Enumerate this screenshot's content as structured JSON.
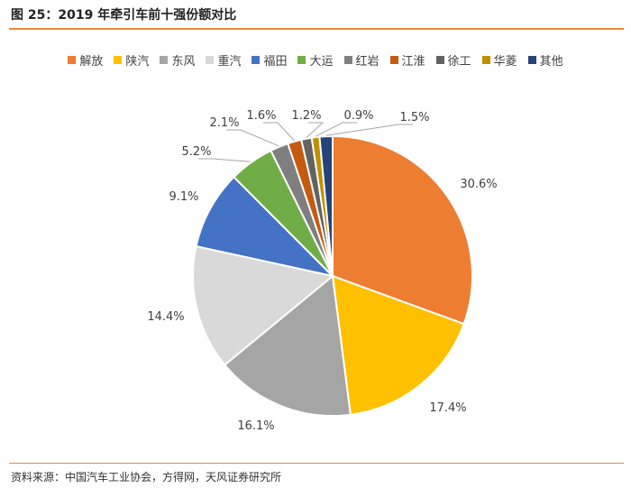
{
  "figure": {
    "title": "图 25：2019 年牵引车前十强份额对比",
    "source": "资料来源：中国汽车工业协会，方得网，天风证券研究所"
  },
  "chart_data": {
    "type": "pie",
    "title": "",
    "legend_position": "top",
    "start_angle": "12 o'clock",
    "direction": "clockwise",
    "categories": [
      "解放",
      "陕汽",
      "东风",
      "重汽",
      "福田",
      "大运",
      "红岩",
      "江淮",
      "徐工",
      "华菱",
      "其他"
    ],
    "values": [
      30.6,
      17.4,
      16.1,
      14.4,
      9.1,
      5.2,
      2.1,
      1.6,
      1.2,
      0.9,
      1.5
    ],
    "data_labels": [
      "30.6%",
      "17.4%",
      "16.1%",
      "14.4%",
      "9.1%",
      "5.2%",
      "2.1%",
      "1.6%",
      "1.2%",
      "0.9%",
      "1.5%"
    ],
    "colors": [
      "#ED7D31",
      "#FFC000",
      "#A5A5A5",
      "#D9D9D9",
      "#4472C4",
      "#70AD47",
      "#7F7F7F",
      "#C55A11",
      "#636363",
      "#BF9000",
      "#264478"
    ]
  }
}
